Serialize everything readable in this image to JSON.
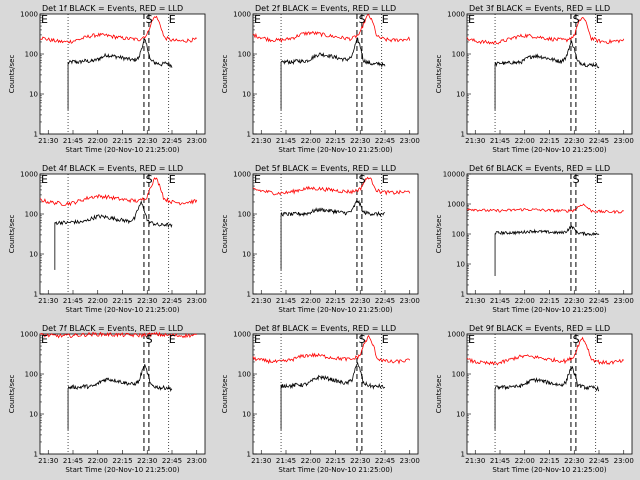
{
  "chart_data": [
    {
      "type": "line",
      "title": "Det 1f BLACK = Events, RED = LLD",
      "xlabel": "Start Time (20-Nov-10 21:25:00)",
      "ylabel": "Counts/sec",
      "xlim": [
        "21:25",
        "23:05"
      ],
      "ylim": [
        1,
        1000
      ],
      "yscale": "log",
      "yticks": [
        "1",
        "10",
        "100",
        "1000"
      ],
      "xticks": [
        "21:30",
        "21:45",
        "22:00",
        "22:15",
        "22:30",
        "22:45",
        "23:00"
      ],
      "markers": [
        "E",
        "S",
        "E"
      ],
      "dotted_lines": [
        "21:42",
        "22:43"
      ],
      "dashed_lines": [
        "22:28",
        "22:31"
      ],
      "series": [
        {
          "name": "BLACK = Events",
          "color": "#000000",
          "start": "21:42",
          "end": "22:45",
          "profile": [
            60,
            65,
            62,
            68,
            65,
            70,
            80,
            95,
            90,
            85,
            80,
            75,
            70,
            80,
            220,
            70,
            60,
            55,
            60,
            50
          ]
        },
        {
          "name": "RED = LLD",
          "color": "#ff0000",
          "start": "21:25",
          "end": "23:00",
          "profile": [
            260,
            230,
            210,
            200,
            210,
            240,
            280,
            300,
            290,
            270,
            250,
            240,
            230,
            300,
            900,
            260,
            220,
            210,
            220,
            230
          ]
        }
      ]
    },
    {
      "type": "line",
      "title": "Det 2f BLACK = Events, RED = LLD",
      "xlabel": "Start Time (20-Nov-10 21:25:00)",
      "ylabel": "Counts/sec",
      "xlim": [
        "21:25",
        "23:05"
      ],
      "ylim": [
        1,
        1000
      ],
      "yscale": "log",
      "yticks": [
        "1",
        "10",
        "100",
        "1000"
      ],
      "xticks": [
        "21:30",
        "21:45",
        "22:00",
        "22:15",
        "22:30",
        "22:45",
        "23:00"
      ],
      "markers": [
        "E",
        "S",
        "E"
      ],
      "dotted_lines": [
        "21:42",
        "22:43"
      ],
      "dashed_lines": [
        "22:28",
        "22:31"
      ],
      "series": [
        {
          "name": "BLACK = Events",
          "color": "#000000",
          "start": "21:42",
          "end": "22:45",
          "profile": [
            60,
            65,
            62,
            68,
            65,
            70,
            85,
            100,
            95,
            90,
            82,
            76,
            72,
            85,
            230,
            70,
            60,
            55,
            58,
            50
          ]
        },
        {
          "name": "RED = LLD",
          "color": "#ff0000",
          "start": "21:25",
          "end": "23:00",
          "profile": [
            300,
            260,
            230,
            220,
            230,
            260,
            320,
            340,
            320,
            290,
            270,
            250,
            240,
            320,
            950,
            270,
            230,
            220,
            230,
            240
          ]
        }
      ]
    },
    {
      "type": "line",
      "title": "Det 3f BLACK = Events, RED = LLD",
      "xlabel": "Start Time (20-Nov-10 21:25:00)",
      "ylabel": "Counts/sec",
      "xlim": [
        "21:25",
        "23:05"
      ],
      "ylim": [
        1,
        1000
      ],
      "yscale": "log",
      "yticks": [
        "1",
        "10",
        "100",
        "1000"
      ],
      "xticks": [
        "21:30",
        "21:45",
        "22:00",
        "22:15",
        "22:30",
        "22:45",
        "23:00"
      ],
      "markers": [
        "E",
        "S",
        "E"
      ],
      "dotted_lines": [
        "21:42",
        "22:43"
      ],
      "dashed_lines": [
        "22:28",
        "22:31"
      ],
      "series": [
        {
          "name": "BLACK = Events",
          "color": "#000000",
          "start": "21:42",
          "end": "22:45",
          "profile": [
            55,
            60,
            58,
            62,
            60,
            65,
            80,
            90,
            88,
            82,
            76,
            70,
            66,
            80,
            200,
            65,
            58,
            52,
            55,
            50
          ]
        },
        {
          "name": "RED = LLD",
          "color": "#ff0000",
          "start": "21:25",
          "end": "23:00",
          "profile": [
            240,
            210,
            200,
            190,
            200,
            230,
            270,
            290,
            280,
            260,
            240,
            230,
            220,
            280,
            850,
            250,
            210,
            200,
            210,
            220
          ]
        }
      ]
    },
    {
      "type": "line",
      "title": "Det 4f BLACK = Events, RED = LLD",
      "xlabel": "Start Time (20-Nov-10 21:25:00)",
      "ylabel": "Counts/sec",
      "xlim": [
        "21:25",
        "23:05"
      ],
      "ylim": [
        1,
        1000
      ],
      "yscale": "log",
      "yticks": [
        "1",
        "10",
        "100",
        "1000"
      ],
      "xticks": [
        "21:30",
        "21:45",
        "22:00",
        "22:15",
        "22:30",
        "22:45",
        "23:00"
      ],
      "markers": [
        "E",
        "S",
        "E"
      ],
      "dotted_lines": [
        "21:42",
        "22:43"
      ],
      "dashed_lines": [
        "22:28",
        "22:31"
      ],
      "series": [
        {
          "name": "BLACK = Events",
          "color": "#000000",
          "start": "21:34",
          "end": "22:45",
          "profile": [
            60,
            62,
            60,
            64,
            62,
            66,
            78,
            88,
            85,
            80,
            75,
            70,
            66,
            78,
            190,
            66,
            58,
            52,
            55,
            50
          ]
        },
        {
          "name": "RED = LLD",
          "color": "#ff0000",
          "start": "21:25",
          "end": "23:00",
          "profile": [
            230,
            200,
            190,
            180,
            190,
            220,
            260,
            280,
            270,
            250,
            230,
            220,
            210,
            270,
            800,
            240,
            200,
            190,
            200,
            210
          ]
        }
      ]
    },
    {
      "type": "line",
      "title": "Det 5f BLACK = Events, RED = LLD",
      "xlabel": "Start Time (20-Nov-10 21:25:00)",
      "ylabel": "Counts/sec",
      "xlim": [
        "21:25",
        "23:05"
      ],
      "ylim": [
        1,
        1000
      ],
      "yscale": "log",
      "yticks": [
        "1",
        "10",
        "100",
        "1000"
      ],
      "xticks": [
        "21:30",
        "21:45",
        "22:00",
        "22:15",
        "22:30",
        "22:45",
        "23:00"
      ],
      "markers": [
        "E",
        "S",
        "E"
      ],
      "dotted_lines": [
        "21:42",
        "22:43"
      ],
      "dashed_lines": [
        "22:28",
        "22:31"
      ],
      "series": [
        {
          "name": "BLACK = Events",
          "color": "#000000",
          "start": "21:42",
          "end": "22:45",
          "profile": [
            100,
            100,
            98,
            102,
            100,
            105,
            120,
            130,
            125,
            120,
            115,
            110,
            105,
            120,
            220,
            110,
            105,
            100,
            100,
            98
          ]
        },
        {
          "name": "RED = LLD",
          "color": "#ff0000",
          "start": "21:25",
          "end": "23:00",
          "profile": [
            420,
            380,
            350,
            330,
            340,
            370,
            420,
            440,
            430,
            410,
            390,
            370,
            360,
            420,
            850,
            380,
            350,
            340,
            350,
            360
          ]
        }
      ]
    },
    {
      "type": "line",
      "title": "Det 6f BLACK = Events, RED = LLD",
      "xlabel": "Start Time (20-Nov-10 21:25:00)",
      "ylabel": "Counts/sec",
      "xlim": [
        "21:25",
        "23:05"
      ],
      "ylim": [
        1,
        10000
      ],
      "yscale": "log",
      "yticks": [
        "1",
        "10",
        "100",
        "1000",
        "10000"
      ],
      "xticks": [
        "21:30",
        "21:45",
        "22:00",
        "22:15",
        "22:30",
        "22:45",
        "23:00"
      ],
      "markers": [
        "S",
        "E"
      ],
      "dotted_lines": [
        "22:43"
      ],
      "dashed_lines": [
        "22:28",
        "22:31"
      ],
      "series": [
        {
          "name": "BLACK = Events",
          "color": "#000000",
          "start": "21:42",
          "end": "22:45",
          "profile": [
            110,
            110,
            108,
            112,
            110,
            115,
            120,
            125,
            122,
            118,
            115,
            112,
            110,
            120,
            180,
            110,
            105,
            100,
            100,
            98
          ]
        },
        {
          "name": "RED = LLD",
          "color": "#ff0000",
          "start": "21:25",
          "end": "23:00",
          "profile": [
            700,
            650,
            620,
            600,
            600,
            610,
            640,
            660,
            650,
            630,
            610,
            600,
            590,
            620,
            1000,
            600,
            560,
            550,
            550,
            560
          ]
        }
      ]
    },
    {
      "type": "line",
      "title": "Det 7f BLACK = Events, RED = LLD",
      "xlabel": "Start Time (20-Nov-10 21:25:00)",
      "ylabel": "Counts/sec",
      "xlim": [
        "21:25",
        "23:05"
      ],
      "ylim": [
        1,
        1000
      ],
      "yscale": "log",
      "yticks": [
        "1",
        "10",
        "100",
        "1000"
      ],
      "xticks": [
        "21:30",
        "21:45",
        "22:00",
        "22:15",
        "22:30",
        "22:45",
        "23:00"
      ],
      "markers": [
        "E",
        "S",
        "E"
      ],
      "dotted_lines": [
        "21:42",
        "22:43"
      ],
      "dashed_lines": [
        "22:28",
        "22:31"
      ],
      "series": [
        {
          "name": "BLACK = Events",
          "color": "#000000",
          "start": "21:42",
          "end": "22:45",
          "profile": [
            45,
            48,
            46,
            50,
            48,
            52,
            65,
            75,
            72,
            68,
            62,
            58,
            55,
            65,
            160,
            55,
            48,
            45,
            46,
            42
          ]
        },
        {
          "name": "RED = LLD",
          "color": "#ff0000",
          "start": "21:25",
          "end": "23:00",
          "profile": [
            950,
            920,
            900,
            900,
            920,
            950,
            980,
            990,
            980,
            960,
            950,
            940,
            930,
            960,
            990,
            940,
            920,
            910,
            920,
            930
          ]
        }
      ]
    },
    {
      "type": "line",
      "title": "Det 8f BLACK = Events, RED = LLD",
      "xlabel": "Start Time (20-Nov-10 21:25:00)",
      "ylabel": "Counts/sec",
      "xlim": [
        "21:25",
        "23:05"
      ],
      "ylim": [
        1,
        1000
      ],
      "yscale": "log",
      "yticks": [
        "1",
        "10",
        "100",
        "1000"
      ],
      "xticks": [
        "21:30",
        "21:45",
        "22:00",
        "22:15",
        "22:30",
        "22:45",
        "23:00"
      ],
      "markers": [
        "E",
        "S",
        "E"
      ],
      "dotted_lines": [
        "21:42",
        "22:43"
      ],
      "dashed_lines": [
        "22:28",
        "22:31"
      ],
      "series": [
        {
          "name": "BLACK = Events",
          "color": "#000000",
          "start": "21:42",
          "end": "22:45",
          "profile": [
            50,
            52,
            50,
            55,
            53,
            58,
            72,
            85,
            80,
            75,
            68,
            62,
            58,
            72,
            180,
            60,
            52,
            48,
            50,
            46
          ]
        },
        {
          "name": "RED = LLD",
          "color": "#ff0000",
          "start": "21:25",
          "end": "23:00",
          "profile": [
            250,
            220,
            210,
            200,
            210,
            240,
            280,
            300,
            290,
            270,
            250,
            240,
            230,
            290,
            850,
            250,
            210,
            200,
            210,
            220
          ]
        }
      ]
    },
    {
      "type": "line",
      "title": "Det 9f BLACK = Events, RED = LLD",
      "xlabel": "Start Time (20-Nov-10 21:25:00)",
      "ylabel": "Counts/sec",
      "xlim": [
        "21:25",
        "23:05"
      ],
      "ylim": [
        1,
        1000
      ],
      "yscale": "log",
      "yticks": [
        "1",
        "10",
        "100",
        "1000"
      ],
      "xticks": [
        "21:30",
        "21:45",
        "22:00",
        "22:15",
        "22:30",
        "22:45",
        "23:00"
      ],
      "markers": [
        "E",
        "S",
        "E"
      ],
      "dotted_lines": [
        "21:42",
        "22:43"
      ],
      "dashed_lines": [
        "22:28",
        "22:31"
      ],
      "series": [
        {
          "name": "BLACK = Events",
          "color": "#000000",
          "start": "21:42",
          "end": "22:45",
          "profile": [
            45,
            48,
            46,
            50,
            48,
            52,
            62,
            72,
            70,
            65,
            60,
            56,
            53,
            62,
            150,
            55,
            48,
            45,
            46,
            42
          ]
        },
        {
          "name": "RED = LLD",
          "color": "#ff0000",
          "start": "21:25",
          "end": "23:00",
          "profile": [
            230,
            200,
            190,
            180,
            190,
            220,
            260,
            280,
            270,
            250,
            230,
            220,
            210,
            270,
            800,
            240,
            200,
            190,
            200,
            210
          ]
        }
      ]
    }
  ]
}
